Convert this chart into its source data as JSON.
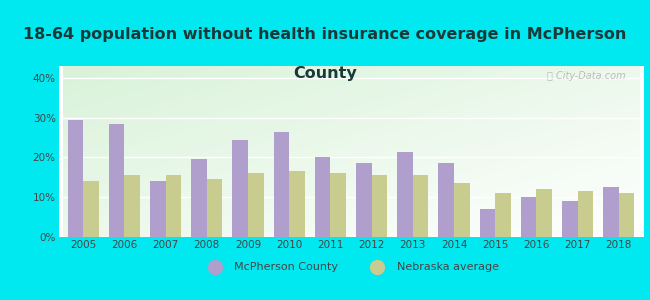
{
  "title_line1": "18-64 population without health insurance coverage in McPherson",
  "title_line2": "County",
  "years": [
    2005,
    2006,
    2007,
    2008,
    2009,
    2010,
    2011,
    2012,
    2013,
    2014,
    2015,
    2016,
    2017,
    2018
  ],
  "mcpherson": [
    29.5,
    28.5,
    14.0,
    19.5,
    24.5,
    26.5,
    20.0,
    18.5,
    21.5,
    18.5,
    7.0,
    10.0,
    9.0,
    12.5
  ],
  "nebraska": [
    14.0,
    15.5,
    15.5,
    14.5,
    16.0,
    16.5,
    16.0,
    15.5,
    15.5,
    13.5,
    11.0,
    12.0,
    11.5,
    11.0
  ],
  "mcpherson_color": "#b09fcc",
  "nebraska_color": "#c8cc8f",
  "background_outer": "#00e8f0",
  "title_color": "#1a3a3a",
  "axis_label_color": "#444444",
  "ylabel_ticks": [
    "0%",
    "10%",
    "20%",
    "30%",
    "40%"
  ],
  "ylim": [
    0,
    43
  ],
  "yticks": [
    0,
    10,
    20,
    30,
    40
  ],
  "legend_mcpherson": "McPherson County",
  "legend_nebraska": "Nebraska average",
  "bar_width": 0.38,
  "watermark": "ⓘ City-Data.com",
  "title_fontsize": 11.5
}
